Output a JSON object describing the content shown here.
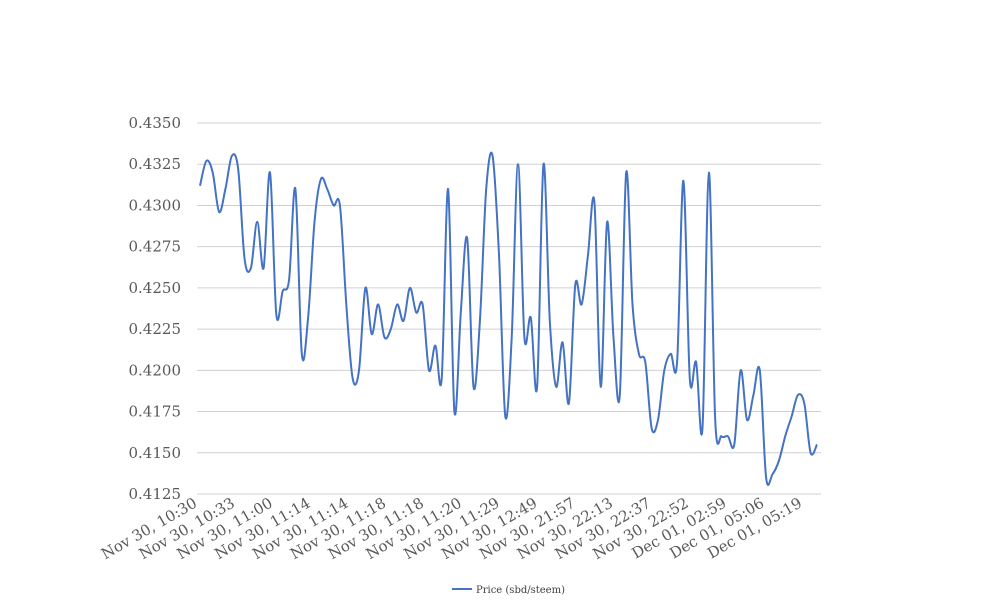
{
  "chart_data": {
    "type": "line",
    "title": "",
    "xlabel": "",
    "ylabel": "",
    "ylim": [
      0.4125,
      0.435
    ],
    "yticks": [
      "0.4350",
      "0.4325",
      "0.4300",
      "0.4275",
      "0.4250",
      "0.4225",
      "0.4200",
      "0.4175",
      "0.4150",
      "0.4125"
    ],
    "xticks": [
      "Nov 30, 10:30",
      "Nov 30, 10:33",
      "Nov 30, 11:00",
      "Nov 30, 11:14",
      "Nov 30, 11:14",
      "Nov 30, 11:18",
      "Nov 30, 11:18",
      "Nov 30, 11:20",
      "Nov 30, 11:29",
      "Nov 30, 12:49",
      "Nov 30, 21:57",
      "Nov 30, 22:13",
      "Nov 30, 22:37",
      "Nov 30, 22:52",
      "Dec 01, 02:59",
      "Dec 01, 05:06",
      "Dec 01, 05:19"
    ],
    "grid": true,
    "legend_position": "bottom",
    "series_color": "#4472c4",
    "series": [
      {
        "name": "Price (sbd/steem)",
        "values": [
          0.4312,
          0.4327,
          0.432,
          0.4296,
          0.431,
          0.433,
          0.4322,
          0.4268,
          0.4262,
          0.429,
          0.4262,
          0.432,
          0.4234,
          0.4248,
          0.4255,
          0.431,
          0.421,
          0.4232,
          0.429,
          0.4316,
          0.431,
          0.43,
          0.43,
          0.424,
          0.4195,
          0.42,
          0.425,
          0.4222,
          0.424,
          0.422,
          0.4225,
          0.424,
          0.423,
          0.425,
          0.4235,
          0.424,
          0.42,
          0.4215,
          0.4195,
          0.431,
          0.4175,
          0.4235,
          0.428,
          0.419,
          0.423,
          0.431,
          0.433,
          0.427,
          0.4172,
          0.422,
          0.4325,
          0.422,
          0.4232,
          0.419,
          0.4325,
          0.423,
          0.419,
          0.4217,
          0.418,
          0.4252,
          0.424,
          0.427,
          0.4302,
          0.419,
          0.429,
          0.422,
          0.4185,
          0.432,
          0.424,
          0.421,
          0.4205,
          0.4165,
          0.417,
          0.42,
          0.421,
          0.4205,
          0.4315,
          0.4195,
          0.4205,
          0.4165,
          0.432,
          0.417,
          0.416,
          0.416,
          0.4155,
          0.42,
          0.417,
          0.4185,
          0.42,
          0.4135,
          0.4137,
          0.4145,
          0.416,
          0.4172,
          0.4185,
          0.418,
          0.415,
          0.4155
        ]
      }
    ]
  }
}
